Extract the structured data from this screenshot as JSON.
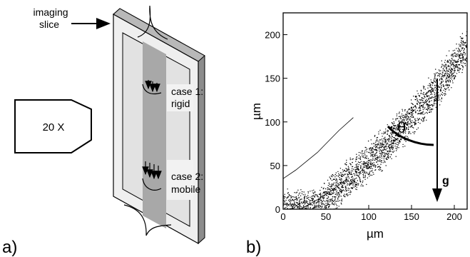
{
  "panel_a": {
    "label": "a)",
    "imaging_label_line1": "imaging",
    "imaging_label_line2": "slice",
    "objective_label": "20 X",
    "case1_line1": "case 1:",
    "case1_line2": "rigid",
    "case2_line1": "case 2:",
    "case2_line2": "mobile"
  },
  "panel_b": {
    "label": "b)",
    "angle_symbol": "θ",
    "gravity_symbol": "g"
  },
  "chart_data": {
    "type": "scatter",
    "title": "",
    "xlabel": "µm",
    "ylabel": "µm",
    "xlim": [
      0,
      215
    ],
    "ylim": [
      0,
      225
    ],
    "xticks": [
      0,
      50,
      100,
      150,
      200
    ],
    "yticks": [
      0,
      50,
      100,
      150,
      200
    ],
    "xtick_labels": [
      "0",
      "50",
      "100",
      "150",
      "200"
    ],
    "ytick_labels": [
      "0",
      "50",
      "100",
      "150",
      "200"
    ],
    "grid": false,
    "band_centerline": [
      [
        40,
        0
      ],
      [
        60,
        20
      ],
      [
        90,
        45
      ],
      [
        120,
        72
      ],
      [
        150,
        105
      ],
      [
        180,
        140
      ],
      [
        215,
        185
      ]
    ],
    "band_halfwidth_um": 30,
    "edge_curves": [
      [
        [
          0,
          35
        ],
        [
          15,
          45
        ],
        [
          40,
          65
        ],
        [
          65,
          90
        ],
        [
          82,
          105
        ]
      ],
      [
        [
          20,
          0
        ],
        [
          35,
          8
        ],
        [
          55,
          20
        ],
        [
          75,
          35
        ]
      ]
    ]
  }
}
